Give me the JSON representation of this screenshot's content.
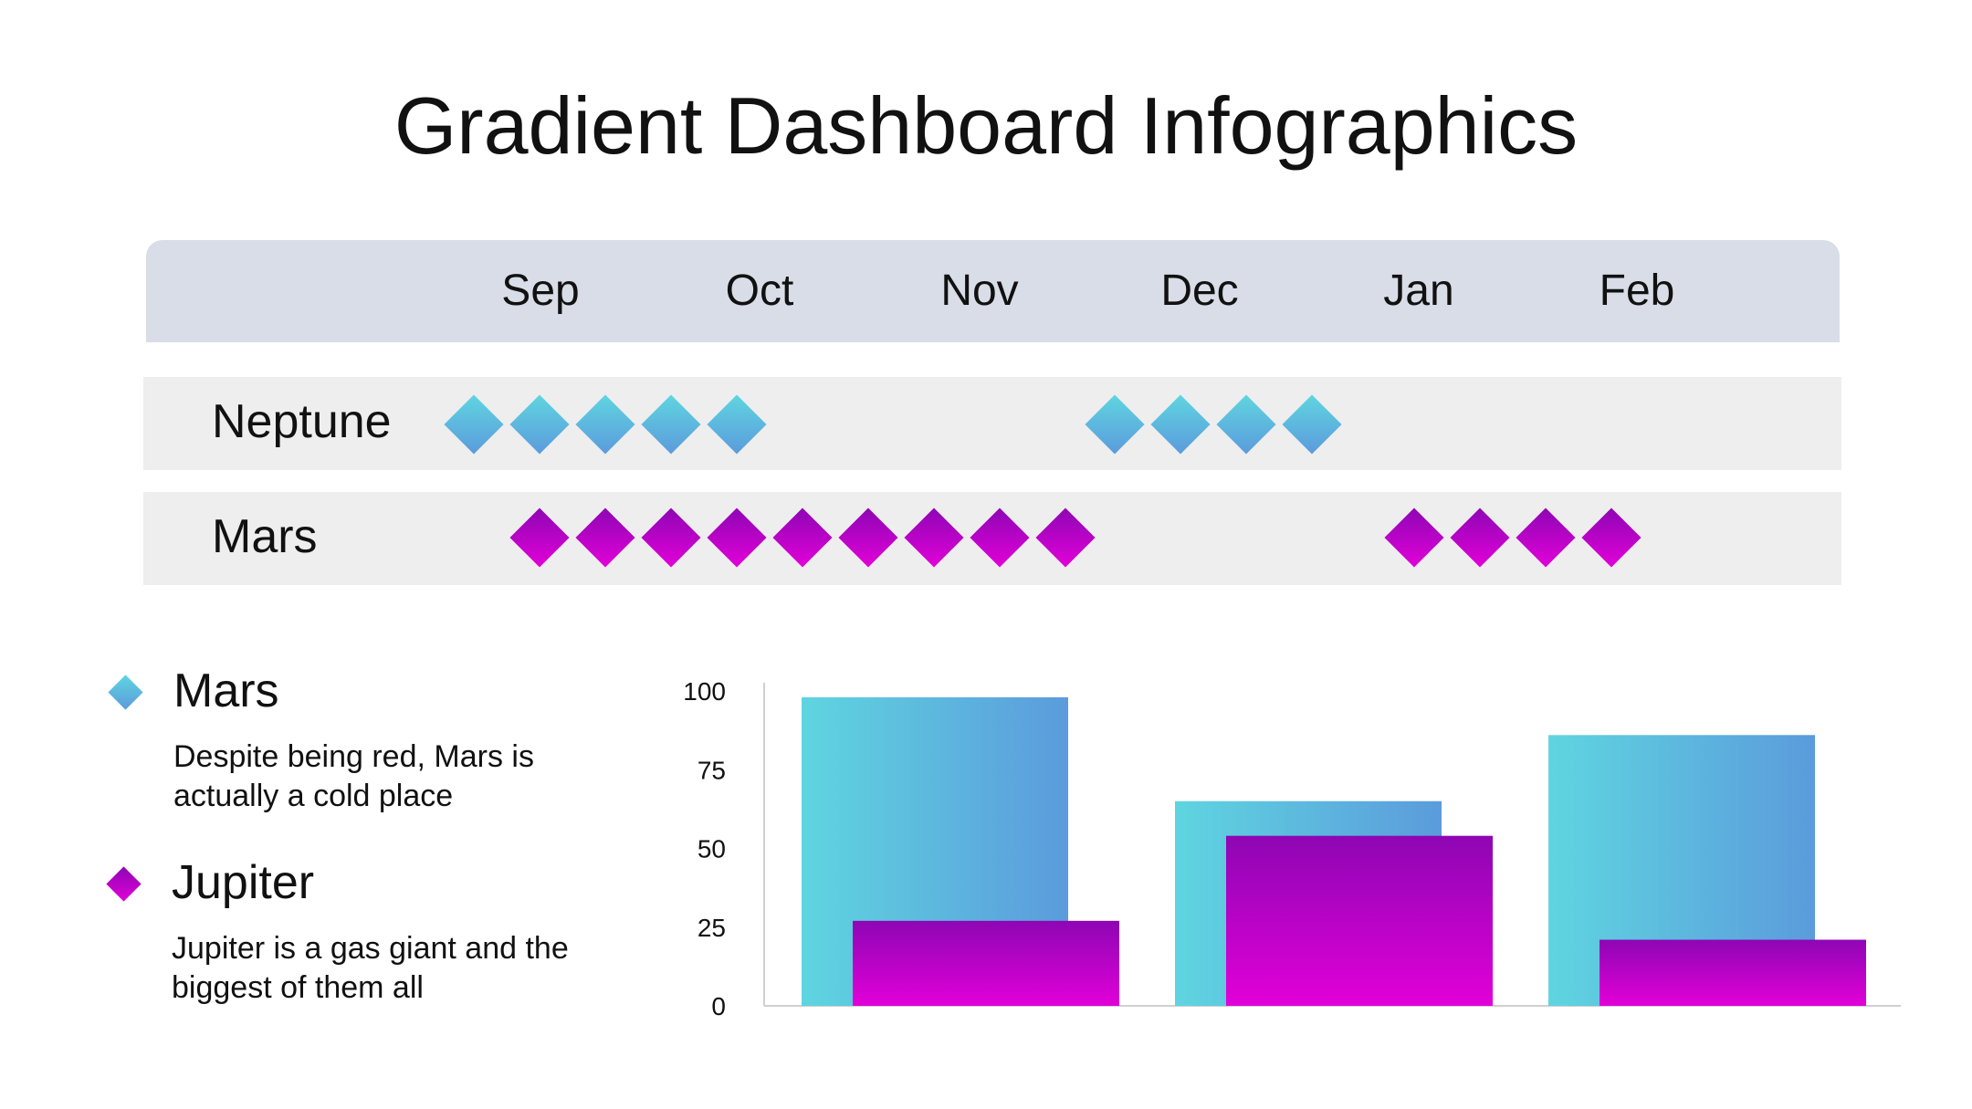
{
  "title": "Gradient Dashboard Infographics",
  "timeline": {
    "months": [
      "Sep",
      "Oct",
      "Nov",
      "Dec",
      "Jan",
      "Feb"
    ],
    "rows": [
      {
        "label": "Neptune",
        "color": "cyan",
        "diamonds": 9
      },
      {
        "label": "Mars",
        "color": "magenta",
        "diamonds": 13
      }
    ]
  },
  "legend": [
    {
      "name": "Mars",
      "desc": "Despite being red, Mars is actually a cold place",
      "color": "#5fb8e0"
    },
    {
      "name": "Jupiter",
      "desc": "Jupiter is a gas giant and the biggest of them all",
      "color": "#b800c8"
    }
  ],
  "chart_data": {
    "type": "bar",
    "categories": [
      "",
      "",
      ""
    ],
    "series": [
      {
        "name": "Mars",
        "values": [
          98,
          65,
          86
        ]
      },
      {
        "name": "Jupiter",
        "values": [
          27,
          54,
          21
        ]
      }
    ],
    "yticks": [
      "0",
      "25",
      "50",
      "75",
      "100"
    ],
    "ylim": [
      0,
      100
    ],
    "grid": false
  },
  "colors": {
    "cyan_start": "#5fd5e0",
    "cyan_end": "#5b9bdc",
    "magenta_top": "#8e06b4",
    "magenta_bottom": "#e200d8",
    "band": "#d8dde7",
    "row": "#eeeeee"
  }
}
